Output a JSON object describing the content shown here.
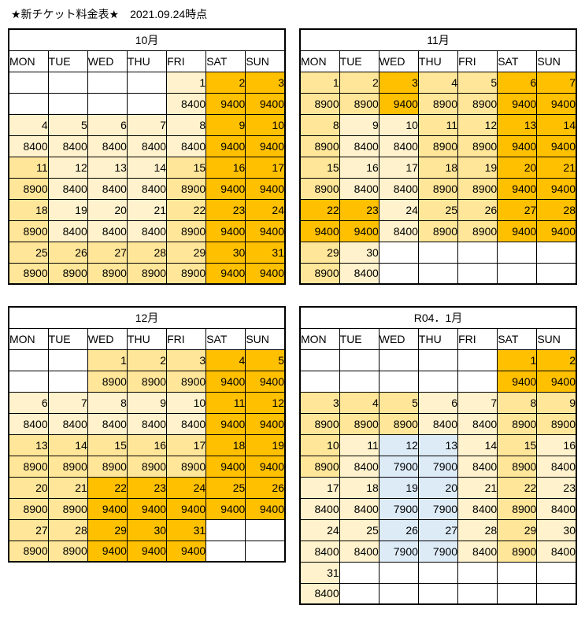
{
  "page_title": "★新チケット料金表★　2021.09.24時点",
  "day_headers": [
    "MON",
    "TUE",
    "WED",
    "THU",
    "FRI",
    "SAT",
    "SUN"
  ],
  "header_colors": {
    "weekday": "#E2EFDA",
    "sat": "#9DC3E6",
    "sun": "#F4B183"
  },
  "price_colors": {
    "7900": "#DDEBF7",
    "8400": "#FFF2CC",
    "8900": "#FFE699",
    "9400": "#FFC000"
  },
  "calendars": [
    {
      "id": "october",
      "title": "10月",
      "weeks": [
        [
          null,
          null,
          null,
          null,
          {
            "day": 1,
            "price": 8400
          },
          {
            "day": 2,
            "price": 9400
          },
          {
            "day": 3,
            "price": 9400
          }
        ],
        [
          {
            "day": 4,
            "price": 8400
          },
          {
            "day": 5,
            "price": 8400
          },
          {
            "day": 6,
            "price": 8400
          },
          {
            "day": 7,
            "price": 8400
          },
          {
            "day": 8,
            "price": 8400
          },
          {
            "day": 9,
            "price": 9400
          },
          {
            "day": 10,
            "price": 9400
          }
        ],
        [
          {
            "day": 11,
            "price": 8900
          },
          {
            "day": 12,
            "price": 8400
          },
          {
            "day": 13,
            "price": 8400
          },
          {
            "day": 14,
            "price": 8400
          },
          {
            "day": 15,
            "price": 8900
          },
          {
            "day": 16,
            "price": 9400
          },
          {
            "day": 17,
            "price": 9400
          }
        ],
        [
          {
            "day": 18,
            "price": 8900
          },
          {
            "day": 19,
            "price": 8400
          },
          {
            "day": 20,
            "price": 8400
          },
          {
            "day": 21,
            "price": 8400
          },
          {
            "day": 22,
            "price": 8900
          },
          {
            "day": 23,
            "price": 9400
          },
          {
            "day": 24,
            "price": 9400
          }
        ],
        [
          {
            "day": 25,
            "price": 8900
          },
          {
            "day": 26,
            "price": 8900
          },
          {
            "day": 27,
            "price": 8900
          },
          {
            "day": 28,
            "price": 8900
          },
          {
            "day": 29,
            "price": 8900
          },
          {
            "day": 30,
            "price": 9400
          },
          {
            "day": 31,
            "price": 9400
          }
        ]
      ]
    },
    {
      "id": "november",
      "title": "11月",
      "weeks": [
        [
          {
            "day": 1,
            "price": 8900
          },
          {
            "day": 2,
            "price": 8900
          },
          {
            "day": 3,
            "price": 9400
          },
          {
            "day": 4,
            "price": 8900
          },
          {
            "day": 5,
            "price": 8900
          },
          {
            "day": 6,
            "price": 9400
          },
          {
            "day": 7,
            "price": 9400
          }
        ],
        [
          {
            "day": 8,
            "price": 8900
          },
          {
            "day": 9,
            "price": 8400
          },
          {
            "day": 10,
            "price": 8400
          },
          {
            "day": 11,
            "price": 8900
          },
          {
            "day": 12,
            "price": 8900
          },
          {
            "day": 13,
            "price": 9400
          },
          {
            "day": 14,
            "price": 9400
          }
        ],
        [
          {
            "day": 15,
            "price": 8900
          },
          {
            "day": 16,
            "price": 8400
          },
          {
            "day": 17,
            "price": 8400
          },
          {
            "day": 18,
            "price": 8900
          },
          {
            "day": 19,
            "price": 8900
          },
          {
            "day": 20,
            "price": 9400
          },
          {
            "day": 21,
            "price": 9400
          }
        ],
        [
          {
            "day": 22,
            "price": 9400
          },
          {
            "day": 23,
            "price": 9400
          },
          {
            "day": 24,
            "price": 8400
          },
          {
            "day": 25,
            "price": 8900
          },
          {
            "day": 26,
            "price": 8900
          },
          {
            "day": 27,
            "price": 9400
          },
          {
            "day": 28,
            "price": 9400
          }
        ],
        [
          {
            "day": 29,
            "price": 8900
          },
          {
            "day": 30,
            "price": 8400
          },
          null,
          null,
          null,
          null,
          null
        ]
      ]
    },
    {
      "id": "december",
      "title": "12月",
      "weeks": [
        [
          null,
          null,
          {
            "day": 1,
            "price": 8900
          },
          {
            "day": 2,
            "price": 8900
          },
          {
            "day": 3,
            "price": 8900
          },
          {
            "day": 4,
            "price": 9400
          },
          {
            "day": 5,
            "price": 9400
          }
        ],
        [
          {
            "day": 6,
            "price": 8400
          },
          {
            "day": 7,
            "price": 8400
          },
          {
            "day": 8,
            "price": 8400
          },
          {
            "day": 9,
            "price": 8400
          },
          {
            "day": 10,
            "price": 8400
          },
          {
            "day": 11,
            "price": 9400
          },
          {
            "day": 12,
            "price": 9400
          }
        ],
        [
          {
            "day": 13,
            "price": 8900
          },
          {
            "day": 14,
            "price": 8900
          },
          {
            "day": 15,
            "price": 8900
          },
          {
            "day": 16,
            "price": 8900
          },
          {
            "day": 17,
            "price": 8900
          },
          {
            "day": 18,
            "price": 9400
          },
          {
            "day": 19,
            "price": 9400
          }
        ],
        [
          {
            "day": 20,
            "price": 8900
          },
          {
            "day": 21,
            "price": 8900
          },
          {
            "day": 22,
            "price": 9400
          },
          {
            "day": 23,
            "price": 9400
          },
          {
            "day": 24,
            "price": 9400
          },
          {
            "day": 25,
            "price": 9400
          },
          {
            "day": 26,
            "price": 9400
          }
        ],
        [
          {
            "day": 27,
            "price": 8900
          },
          {
            "day": 28,
            "price": 8900
          },
          {
            "day": 29,
            "price": 9400
          },
          {
            "day": 30,
            "price": 9400
          },
          {
            "day": 31,
            "price": 9400
          },
          null,
          null
        ]
      ]
    },
    {
      "id": "january",
      "title": "R04．1月",
      "weeks": [
        [
          null,
          null,
          null,
          null,
          null,
          {
            "day": 1,
            "price": 9400
          },
          {
            "day": 2,
            "price": 9400
          }
        ],
        [
          {
            "day": 3,
            "price": 8900
          },
          {
            "day": 4,
            "price": 8900
          },
          {
            "day": 5,
            "price": 8900
          },
          {
            "day": 6,
            "price": 8400
          },
          {
            "day": 7,
            "price": 8400
          },
          {
            "day": 8,
            "price": 8900
          },
          {
            "day": 9,
            "price": 8900
          }
        ],
        [
          {
            "day": 10,
            "price": 8900
          },
          {
            "day": 11,
            "price": 8400
          },
          {
            "day": 12,
            "price": 7900
          },
          {
            "day": 13,
            "price": 7900
          },
          {
            "day": 14,
            "price": 8400
          },
          {
            "day": 15,
            "price": 8900
          },
          {
            "day": 16,
            "price": 8400
          }
        ],
        [
          {
            "day": 17,
            "price": 8400
          },
          {
            "day": 18,
            "price": 8400
          },
          {
            "day": 19,
            "price": 7900
          },
          {
            "day": 20,
            "price": 7900
          },
          {
            "day": 21,
            "price": 8400
          },
          {
            "day": 22,
            "price": 8900
          },
          {
            "day": 23,
            "price": 8400
          }
        ],
        [
          {
            "day": 24,
            "price": 8400
          },
          {
            "day": 25,
            "price": 8400
          },
          {
            "day": 26,
            "price": 7900
          },
          {
            "day": 27,
            "price": 7900
          },
          {
            "day": 28,
            "price": 8400
          },
          {
            "day": 29,
            "price": 8900
          },
          {
            "day": 30,
            "price": 8400
          }
        ],
        [
          {
            "day": 31,
            "price": 8400
          },
          null,
          null,
          null,
          null,
          null,
          null
        ]
      ]
    }
  ]
}
